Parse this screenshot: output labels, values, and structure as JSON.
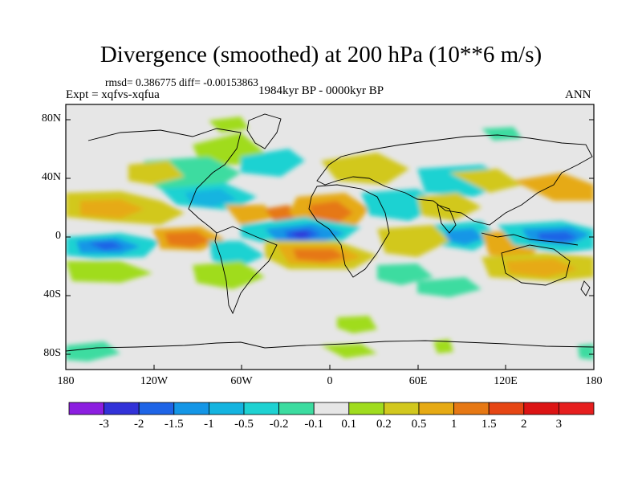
{
  "title": "Divergence (smoothed) at 200 hPa (10**6 m/s)",
  "stats": "rmsd= 0.386775 diff= -0.00153863",
  "experiment": "Expt = xqfvs-xqfua",
  "period": "1984kyr BP - 0000kyr BP",
  "season": "ANN",
  "lat_ticks": [
    {
      "value": 80,
      "label": "80N"
    },
    {
      "value": 40,
      "label": "40N"
    },
    {
      "value": 0,
      "label": "0"
    },
    {
      "value": -40,
      "label": "40S"
    },
    {
      "value": -80,
      "label": "80S"
    }
  ],
  "lon_ticks": [
    {
      "value": -180,
      "label": "180"
    },
    {
      "value": -120,
      "label": "120W"
    },
    {
      "value": -60,
      "label": "60W"
    },
    {
      "value": 0,
      "label": "0"
    },
    {
      "value": 60,
      "label": "60E"
    },
    {
      "value": 120,
      "label": "120E"
    },
    {
      "value": 180,
      "label": "180"
    }
  ],
  "colorbar": {
    "levels": [
      "-3",
      "-2",
      "-1.5",
      "-1",
      "-0.5",
      "-0.2",
      "-0.1",
      "0.1",
      "0.2",
      "0.5",
      "1",
      "1.5",
      "2",
      "3"
    ],
    "colors": [
      "#8c1ee0",
      "#3232d8",
      "#1e64e6",
      "#1496e6",
      "#14b4e0",
      "#1ed2d2",
      "#3cdca0",
      "#e6e6e6",
      "#a0dc1e",
      "#d2c81e",
      "#e6aa14",
      "#e67814",
      "#e64614",
      "#dc1414",
      "#e61e1e"
    ]
  },
  "map_features": [
    {
      "name": "positive-patch",
      "lon": -40,
      "lat": 5,
      "w": 20,
      "h": 10,
      "level": 11
    },
    {
      "name": "negative-patch",
      "lon": -20,
      "lat": 2,
      "w": 22,
      "h": 7,
      "level": 2
    },
    {
      "name": "negative-patch",
      "lon": 150,
      "lat": -2,
      "w": 24,
      "h": 8,
      "level": 2
    },
    {
      "name": "negative-patch",
      "lon": -145,
      "lat": -10,
      "w": 18,
      "h": 6,
      "level": 2
    },
    {
      "name": "positive-patch",
      "lon": 0,
      "lat": -20,
      "w": 30,
      "h": 7,
      "level": 11
    },
    {
      "name": "positive-patch",
      "lon": 100,
      "lat": 10,
      "w": 25,
      "h": 10,
      "level": 11
    },
    {
      "name": "positive-patch",
      "lon": 0,
      "lat": 20,
      "w": 15,
      "h": 6,
      "level": 11
    }
  ]
}
